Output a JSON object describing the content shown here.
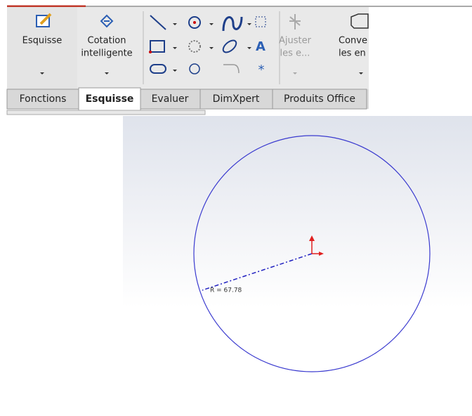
{
  "toolbar": {
    "buttons": [
      {
        "lines": [
          "Esquisse"
        ]
      },
      {
        "lines": [
          "Cotation",
          "intelligente"
        ]
      },
      {
        "lines": [
          "Ajuster",
          "les e..."
        ]
      },
      {
        "lines": [
          "Conve",
          "les en"
        ]
      }
    ]
  },
  "tabs": [
    "Fonctions",
    "Esquisse",
    "Evaluer",
    "DimXpert",
    "Produits Office"
  ],
  "sketch": {
    "dimension_label": "R = 67.78"
  }
}
